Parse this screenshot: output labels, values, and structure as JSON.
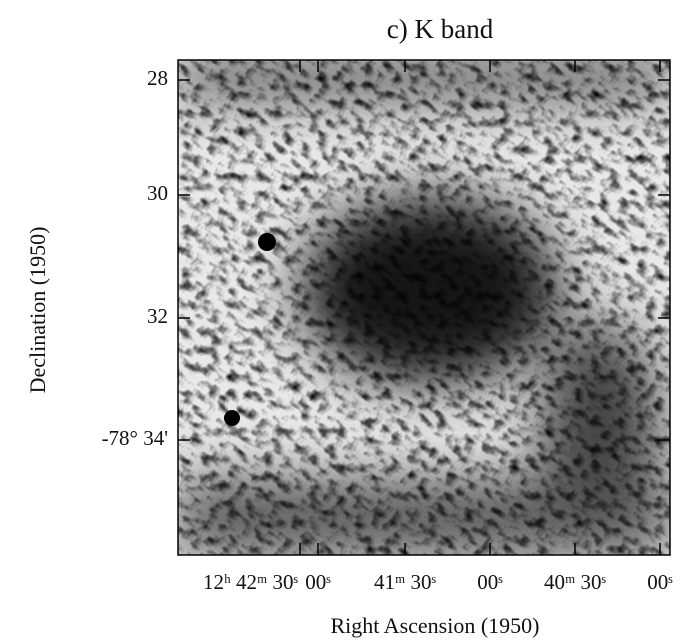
{
  "figure": {
    "title": "c)   K band",
    "x_axis": {
      "label": "Right Ascension (1950)",
      "ticks": [
        "12ʰ 42ᵐ 30ˢ",
        "00ˢ",
        "41ᵐ 30ˢ",
        "00ˢ",
        "40ᵐ 30ˢ",
        "00ˢ"
      ]
    },
    "y_axis": {
      "label": "Declination (1950)",
      "ticks": [
        "28",
        "30",
        "32",
        "-78° 34'"
      ]
    }
  }
}
